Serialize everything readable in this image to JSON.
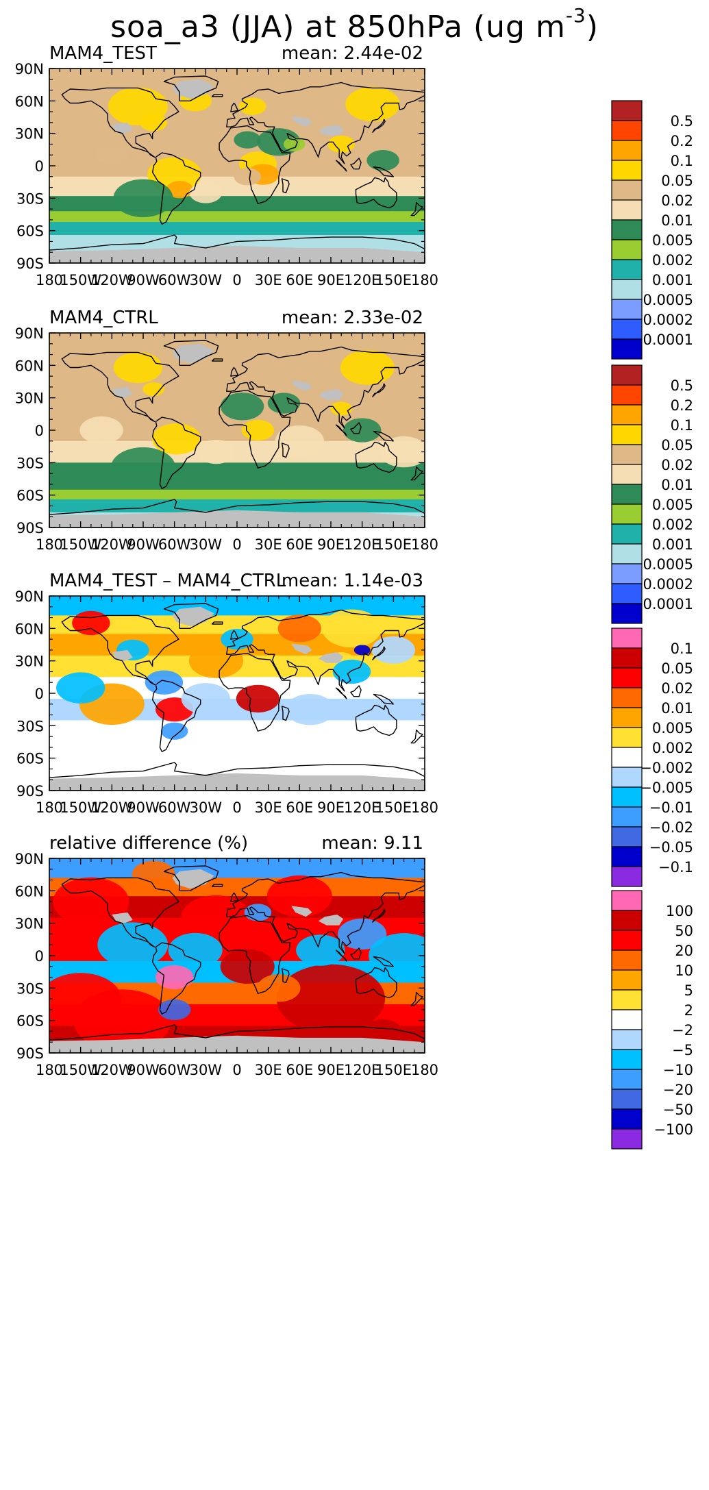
{
  "figure": {
    "title": "soa_a3 (JJA) at 850hPa (ug m",
    "title_exponent": "-3",
    "title_close": ")"
  },
  "chart_data": [
    {
      "type": "heatmap",
      "title": "MAM4_TEST",
      "stat_label": "mean: 2.44e-02",
      "xlabel": "",
      "ylabel": "",
      "x_ticks": [
        "180",
        "150W",
        "120W",
        "90W",
        "60W",
        "30W",
        "0",
        "30E",
        "60E",
        "90E",
        "120E",
        "150E",
        "180"
      ],
      "y_ticks": [
        "90N",
        "60N",
        "30N",
        "0",
        "30S",
        "60S",
        "90S"
      ],
      "xlim": [
        -180,
        180
      ],
      "ylim": [
        -90,
        90
      ],
      "legend": "right",
      "colorbar": {
        "labels": [
          "0.5",
          "0.2",
          "0.1",
          "0.05",
          "0.02",
          "0.01",
          "0.005",
          "0.002",
          "0.001",
          "0.0005",
          "0.0002",
          "0.0001"
        ],
        "colors": [
          "#b22222",
          "#ff4500",
          "#ffa500",
          "#ffd700",
          "#deb887",
          "#f5deb3",
          "#2e8b57",
          "#9acd32",
          "#20b2aa",
          "#b0e0e6",
          "#7b9dff",
          "#2f5cff",
          "#0000cd"
        ]
      },
      "missing_color": "#c0c0c0"
    },
    {
      "type": "heatmap",
      "title": "MAM4_CTRL",
      "stat_label": "mean: 2.33e-02",
      "xlabel": "",
      "ylabel": "",
      "x_ticks": [
        "180",
        "150W",
        "120W",
        "90W",
        "60W",
        "30W",
        "0",
        "30E",
        "60E",
        "90E",
        "120E",
        "150E",
        "180"
      ],
      "y_ticks": [
        "90N",
        "60N",
        "30N",
        "0",
        "30S",
        "60S",
        "90S"
      ],
      "xlim": [
        -180,
        180
      ],
      "ylim": [
        -90,
        90
      ],
      "legend": "right",
      "colorbar": {
        "labels": [
          "0.5",
          "0.2",
          "0.1",
          "0.05",
          "0.02",
          "0.01",
          "0.005",
          "0.002",
          "0.001",
          "0.0005",
          "0.0002",
          "0.0001"
        ],
        "colors": [
          "#b22222",
          "#ff4500",
          "#ffa500",
          "#ffd700",
          "#deb887",
          "#f5deb3",
          "#2e8b57",
          "#9acd32",
          "#20b2aa",
          "#b0e0e6",
          "#7b9dff",
          "#2f5cff",
          "#0000cd"
        ]
      },
      "missing_color": "#c0c0c0"
    },
    {
      "type": "heatmap",
      "title": "MAM4_TEST – MAM4_CTRL",
      "stat_label": "mean: 1.14e-03",
      "xlabel": "",
      "ylabel": "",
      "x_ticks": [
        "180",
        "150W",
        "120W",
        "90W",
        "60W",
        "30W",
        "0",
        "30E",
        "60E",
        "90E",
        "120E",
        "150E",
        "180"
      ],
      "y_ticks": [
        "90N",
        "60N",
        "30N",
        "0",
        "30S",
        "60S",
        "90S"
      ],
      "xlim": [
        -180,
        180
      ],
      "ylim": [
        -90,
        90
      ],
      "legend": "right",
      "colorbar": {
        "labels": [
          "0.1",
          "0.05",
          "0.02",
          "0.01",
          "0.005",
          "0.002",
          "−0.002",
          "−0.005",
          "−0.01",
          "−0.02",
          "−0.05",
          "−0.1"
        ],
        "colors": [
          "#ff69b4",
          "#cc0000",
          "#ff0000",
          "#ff6a00",
          "#ffa500",
          "#ffe033",
          "#ffffff",
          "#b0d8ff",
          "#00bfff",
          "#3d9eff",
          "#4169e1",
          "#0000cd",
          "#8a2be2"
        ]
      },
      "missing_color": "#c0c0c0"
    },
    {
      "type": "heatmap",
      "title": "relative difference (%)",
      "stat_label": "mean:  9.11",
      "xlabel": "",
      "ylabel": "",
      "x_ticks": [
        "180",
        "150W",
        "120W",
        "90W",
        "60W",
        "30W",
        "0",
        "30E",
        "60E",
        "90E",
        "120E",
        "150E",
        "180"
      ],
      "y_ticks": [
        "90N",
        "60N",
        "30N",
        "0",
        "30S",
        "60S",
        "90S"
      ],
      "xlim": [
        -180,
        180
      ],
      "ylim": [
        -90,
        90
      ],
      "legend": "right",
      "colorbar": {
        "labels": [
          "100",
          "50",
          "20",
          "10",
          "5",
          "2",
          "−2",
          "−5",
          "−10",
          "−20",
          "−50",
          "−100"
        ],
        "colors": [
          "#ff69b4",
          "#cc0000",
          "#ff0000",
          "#ff6a00",
          "#ffa500",
          "#ffe033",
          "#ffffff",
          "#b0d8ff",
          "#00bfff",
          "#3d9eff",
          "#4169e1",
          "#0000cd",
          "#8a2be2"
        ]
      },
      "missing_color": "#c0c0c0"
    }
  ]
}
